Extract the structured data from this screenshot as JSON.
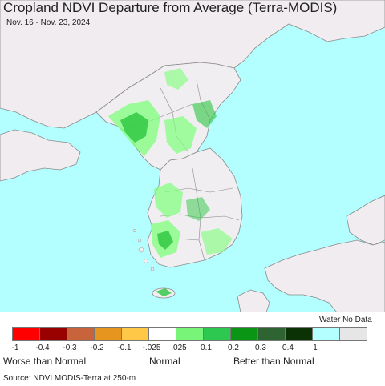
{
  "header": {
    "title": "Cropland NDVI Departure from Average (Terra-MODIS)",
    "date_range": "Nov. 16 - Nov. 23, 2024"
  },
  "map": {
    "colors": {
      "water": "#b3ffff",
      "land_other": "#f0ecf0",
      "normal": "#f1eef1",
      "slightly_better": "#7dff7a",
      "better": "#2bc63f",
      "much_better": "#0aa012",
      "border": "#8a8a8a"
    }
  },
  "legend": {
    "water_no_data_label": "Water No Data",
    "swatches": [
      {
        "color": "#ff0000"
      },
      {
        "color": "#990000"
      },
      {
        "color": "#c8643c"
      },
      {
        "color": "#e6961e"
      },
      {
        "color": "#ffc846"
      },
      {
        "color": "#ffffff"
      },
      {
        "color": "#78f578"
      },
      {
        "color": "#2dc850"
      },
      {
        "color": "#0a9614"
      },
      {
        "color": "#2d6432"
      },
      {
        "color": "#0a3205"
      },
      {
        "color": "#b4ffff"
      },
      {
        "color": "#e6e6e6"
      }
    ],
    "ticks": [
      "-1",
      "-0.4",
      "-0.3",
      "-0.2",
      "-0.1",
      "-.025",
      ".025",
      "0.1",
      "0.2",
      "0.3",
      "0.4",
      "1"
    ],
    "categories": {
      "worse": "Worse than Normal",
      "normal": "Normal",
      "better": "Better than Normal"
    }
  },
  "footer": {
    "source": "Source: NDVI MODIS-Terra at 250-m"
  }
}
